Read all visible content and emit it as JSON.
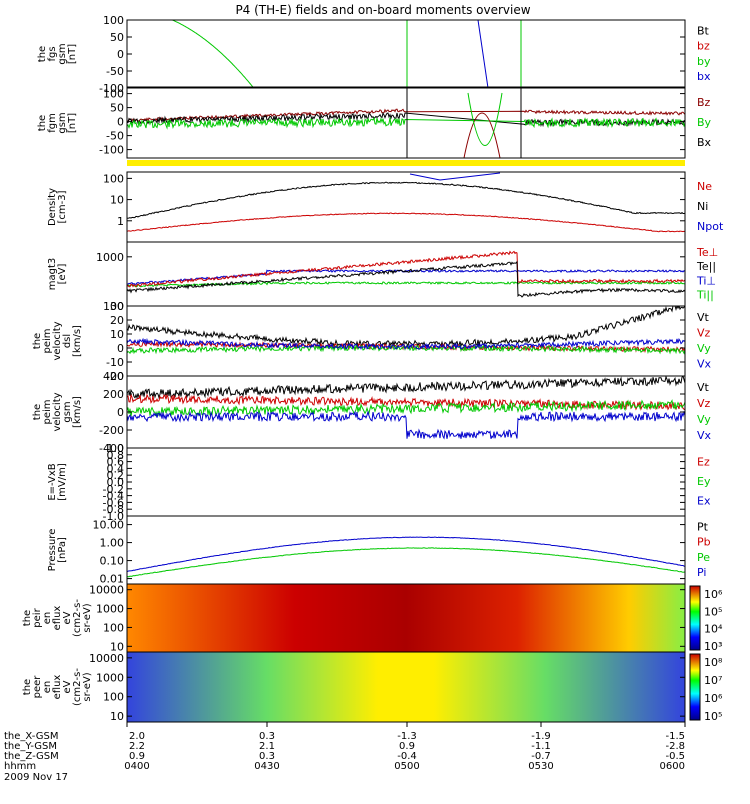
{
  "title": "P4 (TH-E) fields and on-board moments overview",
  "date": "2009 Nov 17",
  "orbit_rows": {
    "labels": [
      "the_X-GSM",
      "the_Y-GSM",
      "the_Z-GSM",
      "hhmm"
    ],
    "values": [
      [
        "2.0",
        "0.3",
        "-1.3",
        "-1.9",
        "-1.5"
      ],
      [
        "2.2",
        "2.1",
        "0.9",
        "-1.1",
        "-2.8"
      ],
      [
        "0.9",
        "0.3",
        "-0.4",
        "-0.7",
        "-0.5"
      ],
      [
        "0400",
        "0430",
        "0500",
        "0530",
        "0600"
      ]
    ]
  },
  "chart_data": [
    {
      "type": "line",
      "id": "fgs",
      "ylabel": [
        "the",
        "fgs",
        "gsm",
        "[nT]"
      ],
      "ylim": [
        -100,
        100
      ],
      "yticks": [
        "100",
        "50",
        "0",
        "-50",
        "-100"
      ],
      "legend": [
        {
          "name": "Bt",
          "color": "#000000"
        },
        {
          "name": "bz",
          "color": "#cc0000"
        },
        {
          "name": "by",
          "color": "#00c800"
        },
        {
          "name": "bx",
          "color": "#0000cc"
        }
      ]
    },
    {
      "type": "line",
      "id": "fgm",
      "ylabel": [
        "the",
        "fgm",
        "gsm",
        "[nT]"
      ],
      "ylim": [
        -130,
        120
      ],
      "yticks": [
        "100",
        "50",
        "0",
        "-50",
        "-100"
      ],
      "legend": [
        {
          "name": "Bz",
          "color": "#8b0000"
        },
        {
          "name": "By",
          "color": "#00c800"
        },
        {
          "name": "Bx",
          "color": "#000000"
        }
      ]
    },
    {
      "type": "line",
      "id": "density",
      "ylabel": [
        "Density",
        "[cm-3]"
      ],
      "yscale": "log",
      "ylim": [
        0.1,
        200
      ],
      "yticks": [
        "100",
        "10",
        "1"
      ],
      "legend": [
        {
          "name": "Ne",
          "color": "#cc0000"
        },
        {
          "name": "Ni",
          "color": "#000000"
        },
        {
          "name": "Npot",
          "color": "#0000cc"
        }
      ]
    },
    {
      "type": "line",
      "id": "temp",
      "ylabel": [
        "magt3",
        "[eV]"
      ],
      "yscale": "log",
      "ylim": [
        100,
        2000
      ],
      "yticks": [
        "1000",
        "100"
      ],
      "legend": [
        {
          "name": "Te⊥",
          "color": "#cc0000"
        },
        {
          "name": "Te||",
          "color": "#000000"
        },
        {
          "name": "Ti⊥",
          "color": "#0000cc"
        },
        {
          "name": "Ti||",
          "color": "#00c800"
        }
      ]
    },
    {
      "type": "line",
      "id": "peim",
      "ylabel": [
        "the",
        "peim",
        "velocity",
        "dsl",
        "[km/s]"
      ],
      "ylim": [
        -20,
        30
      ],
      "yticks": [
        "30",
        "20",
        "10",
        "0",
        "-10",
        "-20"
      ],
      "legend": [
        {
          "name": "Vt",
          "color": "#000000"
        },
        {
          "name": "Vz",
          "color": "#cc0000"
        },
        {
          "name": "Vy",
          "color": "#00c800"
        },
        {
          "name": "Vx",
          "color": "#0000cc"
        }
      ]
    },
    {
      "type": "line",
      "id": "peem",
      "ylabel": [
        "the",
        "peim",
        "velocity",
        "gsm",
        "[km/s]"
      ],
      "ylim": [
        -400,
        400
      ],
      "yticks": [
        "400",
        "200",
        "0",
        "-200",
        "-400"
      ],
      "legend": [
        {
          "name": "Vt",
          "color": "#000000"
        },
        {
          "name": "Vz",
          "color": "#cc0000"
        },
        {
          "name": "Vy",
          "color": "#00c800"
        },
        {
          "name": "Vx",
          "color": "#0000cc"
        }
      ]
    },
    {
      "type": "line",
      "id": "efield",
      "ylabel": [
        "E=-VxB",
        "[mV/m]"
      ],
      "ylim": [
        -1,
        1
      ],
      "yticks": [
        "1.0",
        "0.8",
        "0.6",
        "0.4",
        "0.2",
        "0.0",
        "-0.2",
        "-0.4",
        "-0.6",
        "-0.8",
        "-1.0"
      ],
      "legend": [
        {
          "name": "Ez",
          "color": "#cc0000"
        },
        {
          "name": "Ey",
          "color": "#00c800"
        },
        {
          "name": "Ex",
          "color": "#0000cc"
        }
      ]
    },
    {
      "type": "line",
      "id": "pressure",
      "ylabel": [
        "Pressure",
        "[nPa]"
      ],
      "yscale": "log",
      "ylim": [
        0.005,
        30
      ],
      "yticks": [
        "10.00",
        "1.00",
        "0.10",
        "0.01"
      ],
      "legend": [
        {
          "name": "Pt",
          "color": "#000000"
        },
        {
          "name": "Pb",
          "color": "#cc0000"
        },
        {
          "name": "Pe",
          "color": "#00c800"
        },
        {
          "name": "Pi",
          "color": "#0000cc"
        }
      ]
    },
    {
      "type": "heatmap",
      "id": "peir",
      "ylabel": [
        "the",
        "peir",
        "en",
        "eflux",
        "eV",
        "(cm2-s-",
        "sr-eV)"
      ],
      "yscale": "log",
      "ylim": [
        5,
        20000
      ],
      "yticks": [
        "10000",
        "1000",
        "100",
        "10"
      ],
      "colorbar": {
        "ticks": [
          "10⁶",
          "10⁵",
          "10⁴",
          "10³"
        ]
      }
    },
    {
      "type": "heatmap",
      "id": "peer",
      "ylabel": [
        "the",
        "peer",
        "en",
        "eflux",
        "eV",
        "(cm2-s-",
        "sr-eV)"
      ],
      "yscale": "log",
      "ylim": [
        5,
        20000
      ],
      "yticks": [
        "10000",
        "1000",
        "100",
        "10"
      ],
      "colorbar": {
        "ticks": [
          "10⁸",
          "10⁷",
          "10⁶",
          "10⁵"
        ]
      }
    }
  ]
}
